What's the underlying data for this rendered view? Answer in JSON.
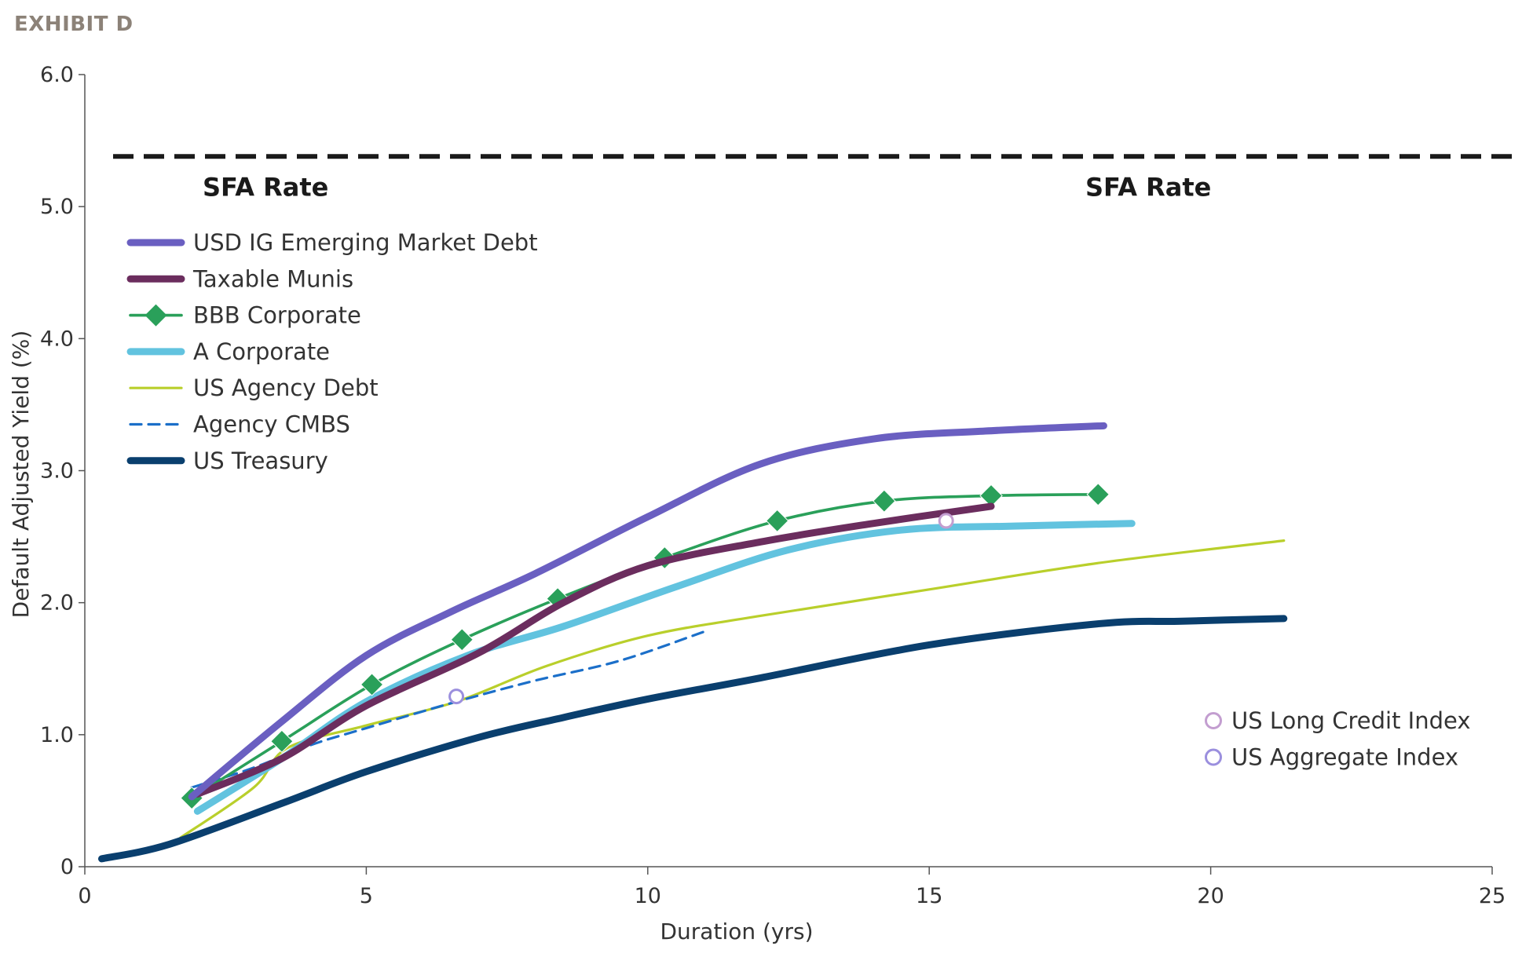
{
  "exhibit_label": "EXHIBIT D",
  "chart_data": {
    "type": "line",
    "xlabel": "Duration (yrs)",
    "ylabel": "Default Adjusted Yield (%)",
    "xlim": [
      0,
      25
    ],
    "ylim": [
      0,
      6
    ],
    "x_ticks": [
      "0",
      "5",
      "10",
      "15",
      "20",
      "25"
    ],
    "y_ticks": [
      "0",
      "1.0",
      "2.0",
      "3.0",
      "4.0",
      "5.0",
      "6.0"
    ],
    "sfa_rate": {
      "value": 5.38,
      "label_left": "SFA Rate",
      "label_right": "SFA Rate",
      "color": "#1a1a1a"
    },
    "series": [
      {
        "name": "USD IG Emerging Market Debt",
        "color": "#6a5fc1",
        "style": "thick",
        "points": [
          [
            1.9,
            0.53
          ],
          [
            3.5,
            1.1
          ],
          [
            5.0,
            1.6
          ],
          [
            6.5,
            1.93
          ],
          [
            8.0,
            2.22
          ],
          [
            10.0,
            2.65
          ],
          [
            12.0,
            3.05
          ],
          [
            14.0,
            3.24
          ],
          [
            16.0,
            3.3
          ],
          [
            18.1,
            3.34
          ]
        ]
      },
      {
        "name": "Taxable Munis",
        "color": "#6b2d5e",
        "style": "thick",
        "points": [
          [
            2.0,
            0.55
          ],
          [
            3.5,
            0.82
          ],
          [
            5.0,
            1.22
          ],
          [
            7.0,
            1.62
          ],
          [
            8.5,
            2.0
          ],
          [
            10.0,
            2.28
          ],
          [
            12.0,
            2.46
          ],
          [
            14.0,
            2.6
          ],
          [
            16.1,
            2.73
          ]
        ]
      },
      {
        "name": "BBB Corporate",
        "color": "#2aa05a",
        "style": "diamond",
        "points": [
          [
            1.9,
            0.52
          ],
          [
            3.5,
            0.95
          ],
          [
            5.1,
            1.38
          ],
          [
            6.7,
            1.72
          ],
          [
            8.4,
            2.03
          ],
          [
            10.3,
            2.34
          ],
          [
            12.3,
            2.62
          ],
          [
            14.2,
            2.77
          ],
          [
            16.1,
            2.81
          ],
          [
            18.0,
            2.82
          ]
        ]
      },
      {
        "name": "A Corporate",
        "color": "#62c3df",
        "style": "thick",
        "points": [
          [
            2.0,
            0.42
          ],
          [
            3.5,
            0.82
          ],
          [
            5.0,
            1.25
          ],
          [
            6.8,
            1.6
          ],
          [
            8.5,
            1.82
          ],
          [
            10.5,
            2.12
          ],
          [
            12.5,
            2.4
          ],
          [
            14.5,
            2.55
          ],
          [
            16.5,
            2.58
          ],
          [
            18.6,
            2.6
          ]
        ]
      },
      {
        "name": "US Agency Debt",
        "color": "#b9cf2b",
        "style": "thin",
        "points": [
          [
            1.7,
            0.22
          ],
          [
            3.0,
            0.6
          ],
          [
            3.6,
            0.9
          ],
          [
            5.0,
            1.07
          ],
          [
            6.6,
            1.25
          ],
          [
            8.2,
            1.52
          ],
          [
            10.0,
            1.75
          ],
          [
            12.0,
            1.9
          ],
          [
            15.0,
            2.1
          ],
          [
            18.0,
            2.3
          ],
          [
            21.3,
            2.47
          ]
        ]
      },
      {
        "name": "Agency CMBS",
        "color": "#1b6fc9",
        "style": "dashed",
        "points": [
          [
            1.9,
            0.6
          ],
          [
            3.0,
            0.75
          ],
          [
            4.0,
            0.92
          ],
          [
            5.0,
            1.05
          ],
          [
            6.6,
            1.25
          ],
          [
            8.0,
            1.41
          ],
          [
            9.5,
            1.56
          ],
          [
            11.0,
            1.78
          ]
        ]
      },
      {
        "name": "US Treasury",
        "color": "#0a3f6e",
        "style": "thick",
        "points": [
          [
            0.3,
            0.06
          ],
          [
            1.5,
            0.17
          ],
          [
            3.5,
            0.48
          ],
          [
            5.0,
            0.72
          ],
          [
            7.0,
            0.98
          ],
          [
            8.5,
            1.13
          ],
          [
            10.0,
            1.27
          ],
          [
            12.0,
            1.43
          ],
          [
            15.0,
            1.68
          ],
          [
            18.0,
            1.84
          ],
          [
            19.5,
            1.86
          ],
          [
            21.3,
            1.88
          ]
        ]
      }
    ],
    "markers": [
      {
        "name": "US Long Credit Index",
        "color": "#c39ed0",
        "x": 15.3,
        "y": 2.62
      },
      {
        "name": "US Aggregate Index",
        "color": "#9b8fde",
        "x": 6.6,
        "y": 1.29
      }
    ]
  }
}
